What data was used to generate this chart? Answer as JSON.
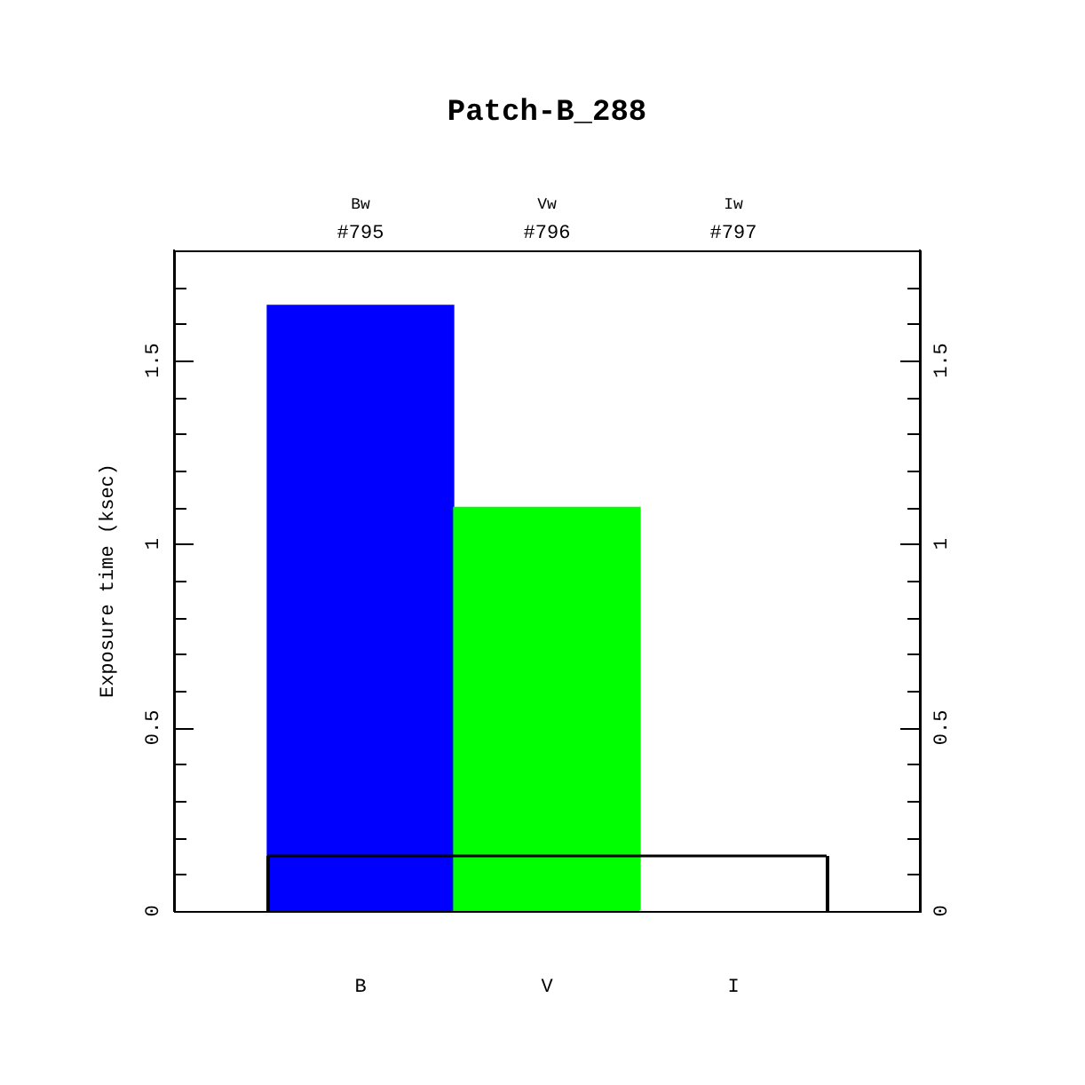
{
  "chart_data": {
    "type": "bar",
    "title": "Patch-B_288",
    "ylabel": "Exposure time (ksec)",
    "categories": [
      "B",
      "V",
      "I"
    ],
    "series": [
      {
        "colors": [
          "#0000ff",
          "#00ff00",
          "#ffffff"
        ],
        "values": [
          1.65,
          1.1,
          0
        ]
      }
    ],
    "ref_lines": [
      {
        "axis": "y",
        "value": 0.15,
        "color": "#000000"
      }
    ],
    "ylim": [
      0,
      1.8
    ],
    "yticks": [
      0,
      {
        "value": 0.1,
        "label": null
      },
      {
        "value": 0.2,
        "label": null
      },
      {
        "value": 0.3,
        "label": null
      },
      {
        "value": 0.4,
        "label": null
      },
      0.5,
      {
        "value": 0.6,
        "label": null
      },
      {
        "value": 0.7,
        "label": null
      },
      {
        "value": 0.8,
        "label": null
      },
      {
        "value": 0.9,
        "label": null
      },
      1,
      {
        "value": 1.1,
        "label": null
      },
      {
        "value": 1.2,
        "label": null
      },
      {
        "value": 1.3,
        "label": null
      },
      {
        "value": 1.4,
        "label": null
      },
      1.5,
      {
        "value": 1.6,
        "label": null
      },
      {
        "value": 1.7,
        "label": null
      },
      {
        "value": 1.8,
        "label": null
      }
    ],
    "y2lim": [
      0,
      1.8
    ],
    "y2ticks": [
      0,
      {
        "value": 0.1,
        "label": null
      },
      {
        "value": 0.2,
        "label": null
      },
      {
        "value": 0.3,
        "label": null
      },
      {
        "value": 0.4,
        "label": null
      },
      0.5,
      {
        "value": 0.6,
        "label": null
      },
      {
        "value": 0.7,
        "label": null
      },
      {
        "value": 0.8,
        "label": null
      },
      {
        "value": 0.9,
        "label": null
      },
      1,
      {
        "value": 1.1,
        "label": null
      },
      {
        "value": 1.2,
        "label": null
      },
      {
        "value": 1.3,
        "label": null
      },
      {
        "value": 1.4,
        "label": null
      },
      1.5,
      {
        "value": 1.6,
        "label": null
      },
      {
        "value": 1.7,
        "label": null
      },
      {
        "value": 1.8,
        "label": null
      }
    ],
    "annotations": [
      "Bw",
      "#795",
      "Vw",
      "#796",
      "Iw",
      "#797"
    ],
    "grid": false,
    "legend": false
  }
}
